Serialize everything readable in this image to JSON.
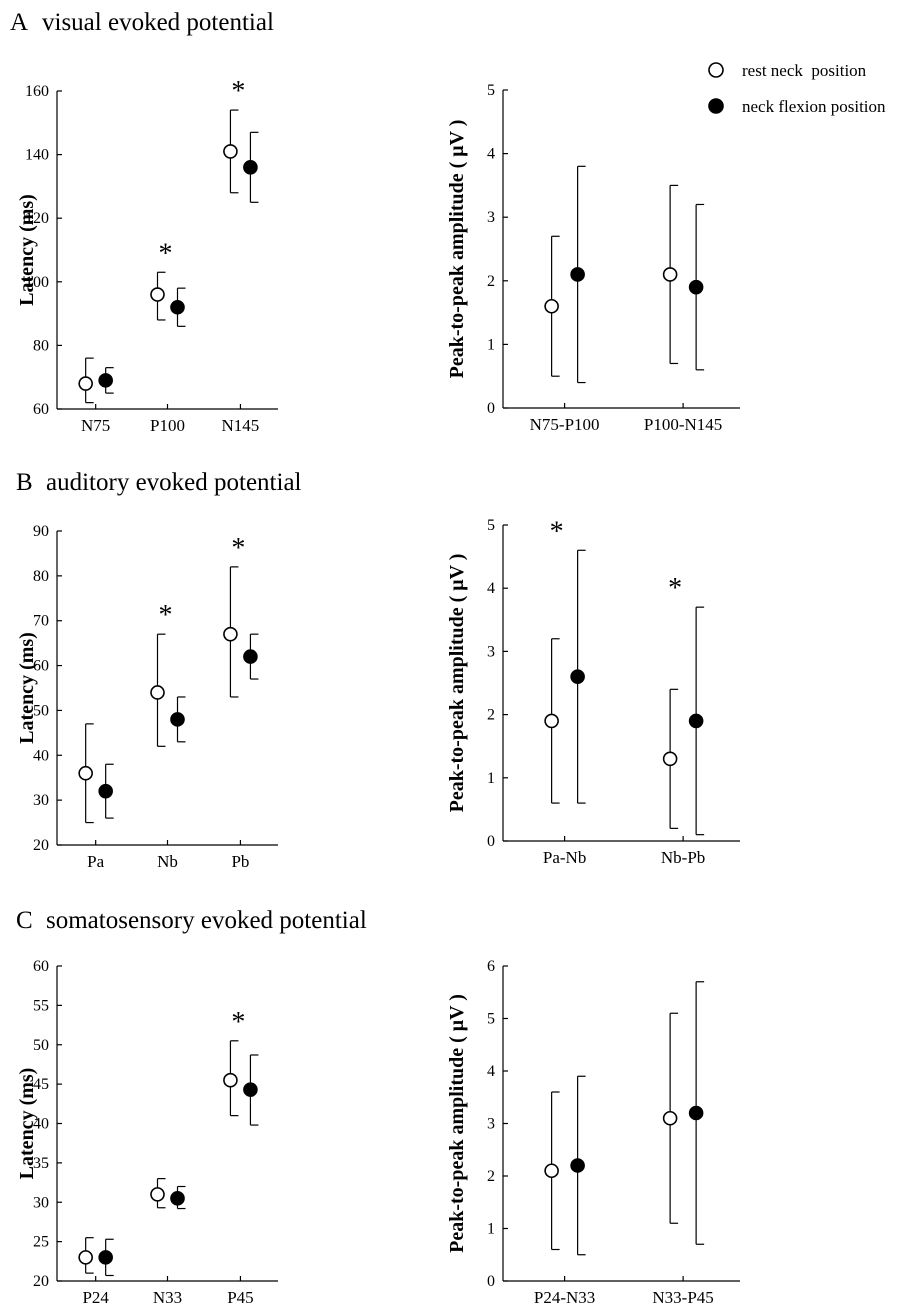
{
  "legend": [
    {
      "label": "rest neck  position",
      "marker": "open-circle"
    },
    {
      "label": "neck flexion position",
      "marker": "filled-circle"
    }
  ],
  "colors": {
    "ink": "#000000",
    "background": "#ffffff",
    "open_marker_fill": "#ffffff"
  },
  "panels": [
    {
      "letter": "A",
      "title": "visual evoked potential"
    },
    {
      "letter": "B",
      "title": "auditory evoked potential"
    },
    {
      "letter": "C",
      "title": "somatosensory evoked potential"
    }
  ],
  "chart_data": [
    {
      "id": "A-latency",
      "type": "scatter",
      "panel": "A",
      "ylabel": "Latency (ms)",
      "ylim": [
        60,
        160
      ],
      "yticks": [
        "60",
        "80",
        "100",
        "120",
        "140",
        "160"
      ],
      "categories": [
        "N75",
        "P100",
        "N145"
      ],
      "series": [
        {
          "name": "rest neck  position",
          "marker": "open",
          "values": [
            68,
            96,
            141
          ],
          "err_low": [
            62,
            88,
            128
          ],
          "err_high": [
            76,
            103,
            154
          ]
        },
        {
          "name": "neck flexion position",
          "marker": "filled",
          "values": [
            69,
            92,
            136
          ],
          "err_low": [
            65,
            86,
            125
          ],
          "err_high": [
            73,
            98,
            147
          ]
        }
      ],
      "significance": [
        "",
        "*",
        "*"
      ]
    },
    {
      "id": "A-amplitude",
      "type": "scatter",
      "panel": "A",
      "ylabel": "Peak-to-peak amplitude ( μV )",
      "ylim": [
        0,
        5
      ],
      "yticks": [
        "0",
        "1",
        "2",
        "3",
        "4",
        "5"
      ],
      "categories": [
        "N75-P100",
        "P100-N145"
      ],
      "series": [
        {
          "name": "rest neck  position",
          "marker": "open",
          "values": [
            1.6,
            2.1
          ],
          "err_low": [
            0.5,
            0.7
          ],
          "err_high": [
            2.7,
            3.5
          ]
        },
        {
          "name": "neck flexion position",
          "marker": "filled",
          "values": [
            2.1,
            1.9
          ],
          "err_low": [
            0.4,
            0.6
          ],
          "err_high": [
            3.8,
            3.2
          ]
        }
      ],
      "significance": [
        "",
        ""
      ]
    },
    {
      "id": "B-latency",
      "type": "scatter",
      "panel": "B",
      "ylabel": "Latency (ms)",
      "ylim": [
        20,
        90
      ],
      "yticks": [
        "20",
        "30",
        "40",
        "50",
        "60",
        "70",
        "80",
        "90"
      ],
      "categories": [
        "Pa",
        "Nb",
        "Pb"
      ],
      "series": [
        {
          "name": "rest neck  position",
          "marker": "open",
          "values": [
            36,
            54,
            67
          ],
          "err_low": [
            25,
            42,
            53
          ],
          "err_high": [
            47,
            67,
            82
          ]
        },
        {
          "name": "neck flexion position",
          "marker": "filled",
          "values": [
            32,
            48,
            62
          ],
          "err_low": [
            26,
            43,
            57
          ],
          "err_high": [
            38,
            53,
            67
          ]
        }
      ],
      "significance": [
        "",
        "*",
        "*"
      ]
    },
    {
      "id": "B-amplitude",
      "type": "scatter",
      "panel": "B",
      "ylabel": "Peak-to-peak amplitude ( μV )",
      "ylim": [
        0,
        5
      ],
      "yticks": [
        "0",
        "1",
        "2",
        "3",
        "4",
        "5"
      ],
      "categories": [
        "Pa-Nb",
        "Nb-Pb"
      ],
      "series": [
        {
          "name": "rest neck  position",
          "marker": "open",
          "values": [
            1.9,
            1.3
          ],
          "err_low": [
            0.6,
            0.2
          ],
          "err_high": [
            3.2,
            2.4
          ]
        },
        {
          "name": "neck flexion position",
          "marker": "filled",
          "values": [
            2.6,
            1.9
          ],
          "err_low": [
            0.6,
            0.1
          ],
          "err_high": [
            4.6,
            3.7
          ]
        }
      ],
      "significance": [
        "*",
        "*"
      ]
    },
    {
      "id": "C-latency",
      "type": "scatter",
      "panel": "C",
      "ylabel": "Latency (ms)",
      "ylim": [
        20,
        60
      ],
      "yticks": [
        "20",
        "25",
        "30",
        "35",
        "40",
        "45",
        "50",
        "55",
        "60"
      ],
      "categories": [
        "P24",
        "N33",
        "P45"
      ],
      "series": [
        {
          "name": "rest neck  position",
          "marker": "open",
          "values": [
            23,
            31,
            45.5
          ],
          "err_low": [
            21,
            29.3,
            41
          ],
          "err_high": [
            25.5,
            33,
            50.5
          ]
        },
        {
          "name": "neck flexion position",
          "marker": "filled",
          "values": [
            23,
            30.5,
            44.3
          ],
          "err_low": [
            20.7,
            29.2,
            39.8
          ],
          "err_high": [
            25.3,
            32,
            48.7
          ]
        }
      ],
      "significance": [
        "",
        "",
        "*"
      ]
    },
    {
      "id": "C-amplitude",
      "type": "scatter",
      "panel": "C",
      "ylabel": "Peak-to-peak amplitude ( μV )",
      "ylim": [
        0,
        6
      ],
      "yticks": [
        "0",
        "1",
        "2",
        "3",
        "4",
        "5",
        "6"
      ],
      "categories": [
        "P24-N33",
        "N33-P45"
      ],
      "series": [
        {
          "name": "rest neck  position",
          "marker": "open",
          "values": [
            2.1,
            3.1
          ],
          "err_low": [
            0.6,
            1.1
          ],
          "err_high": [
            3.6,
            5.1
          ]
        },
        {
          "name": "neck flexion position",
          "marker": "filled",
          "values": [
            2.2,
            3.2
          ],
          "err_low": [
            0.5,
            0.7
          ],
          "err_high": [
            3.9,
            5.7
          ]
        }
      ],
      "significance": [
        "",
        ""
      ]
    }
  ]
}
